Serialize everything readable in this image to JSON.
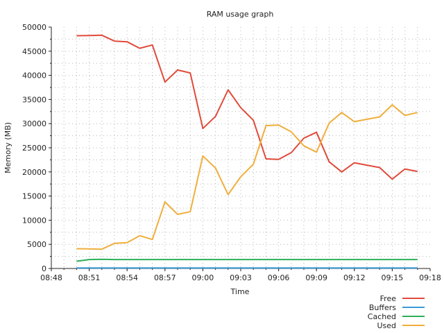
{
  "chart_data": {
    "type": "line",
    "title": "RAM usage graph",
    "xlabel": "Time",
    "ylabel": "Memory (MB)",
    "x_unit": "time (HH:MM)",
    "xlim": [
      "08:48",
      "09:18"
    ],
    "ylim": [
      0,
      50000
    ],
    "x_ticks": [
      "08:48",
      "08:51",
      "08:54",
      "08:57",
      "09:00",
      "09:03",
      "09:06",
      "09:09",
      "09:12",
      "09:15",
      "09:18"
    ],
    "y_ticks": [
      0,
      5000,
      10000,
      15000,
      20000,
      25000,
      30000,
      35000,
      40000,
      45000,
      50000
    ],
    "grid": "dotted",
    "legend_position": "bottom-right",
    "x": [
      "08:50",
      "08:51",
      "08:52",
      "08:53",
      "08:54",
      "08:55",
      "08:56",
      "08:57",
      "08:58",
      "08:59",
      "09:00",
      "09:01",
      "09:02",
      "09:03",
      "09:04",
      "09:05",
      "09:06",
      "09:07",
      "09:08",
      "09:09",
      "09:10",
      "09:11",
      "09:12",
      "09:13",
      "09:14",
      "09:15",
      "09:16",
      "09:17"
    ],
    "series": [
      {
        "name": "Free",
        "color": "#e04a3a",
        "values": [
          48200,
          48250,
          48300,
          47100,
          46950,
          45600,
          46300,
          38600,
          41100,
          40500,
          29000,
          31500,
          37000,
          33300,
          30700,
          22700,
          22600,
          24000,
          27000,
          28200,
          22100,
          20000,
          21900,
          21400,
          20900,
          18500,
          20600,
          20100
        ]
      },
      {
        "name": "Buffers",
        "color": "#3a9ad9",
        "values": [
          120,
          120,
          120,
          120,
          120,
          120,
          120,
          120,
          120,
          120,
          120,
          120,
          120,
          120,
          120,
          120,
          120,
          120,
          120,
          120,
          120,
          120,
          120,
          120,
          120,
          120,
          120,
          120
        ]
      },
      {
        "name": "Cached",
        "color": "#2eaf5c",
        "values": [
          1500,
          1850,
          1900,
          1850,
          1850,
          1850,
          1850,
          1850,
          1850,
          1850,
          1850,
          1850,
          1850,
          1850,
          1850,
          1850,
          1850,
          1850,
          1850,
          1850,
          1850,
          1850,
          1850,
          1850,
          1850,
          1850,
          1850,
          1850
        ]
      },
      {
        "name": "Used",
        "color": "#f0ae3c",
        "values": [
          4100,
          4050,
          4000,
          5200,
          5350,
          6800,
          6000,
          13800,
          11200,
          11750,
          23300,
          20800,
          15300,
          19000,
          21600,
          29600,
          29700,
          28300,
          25400,
          24100,
          30100,
          32300,
          30400,
          30900,
          31400,
          33900,
          31700,
          32300
        ]
      }
    ]
  }
}
